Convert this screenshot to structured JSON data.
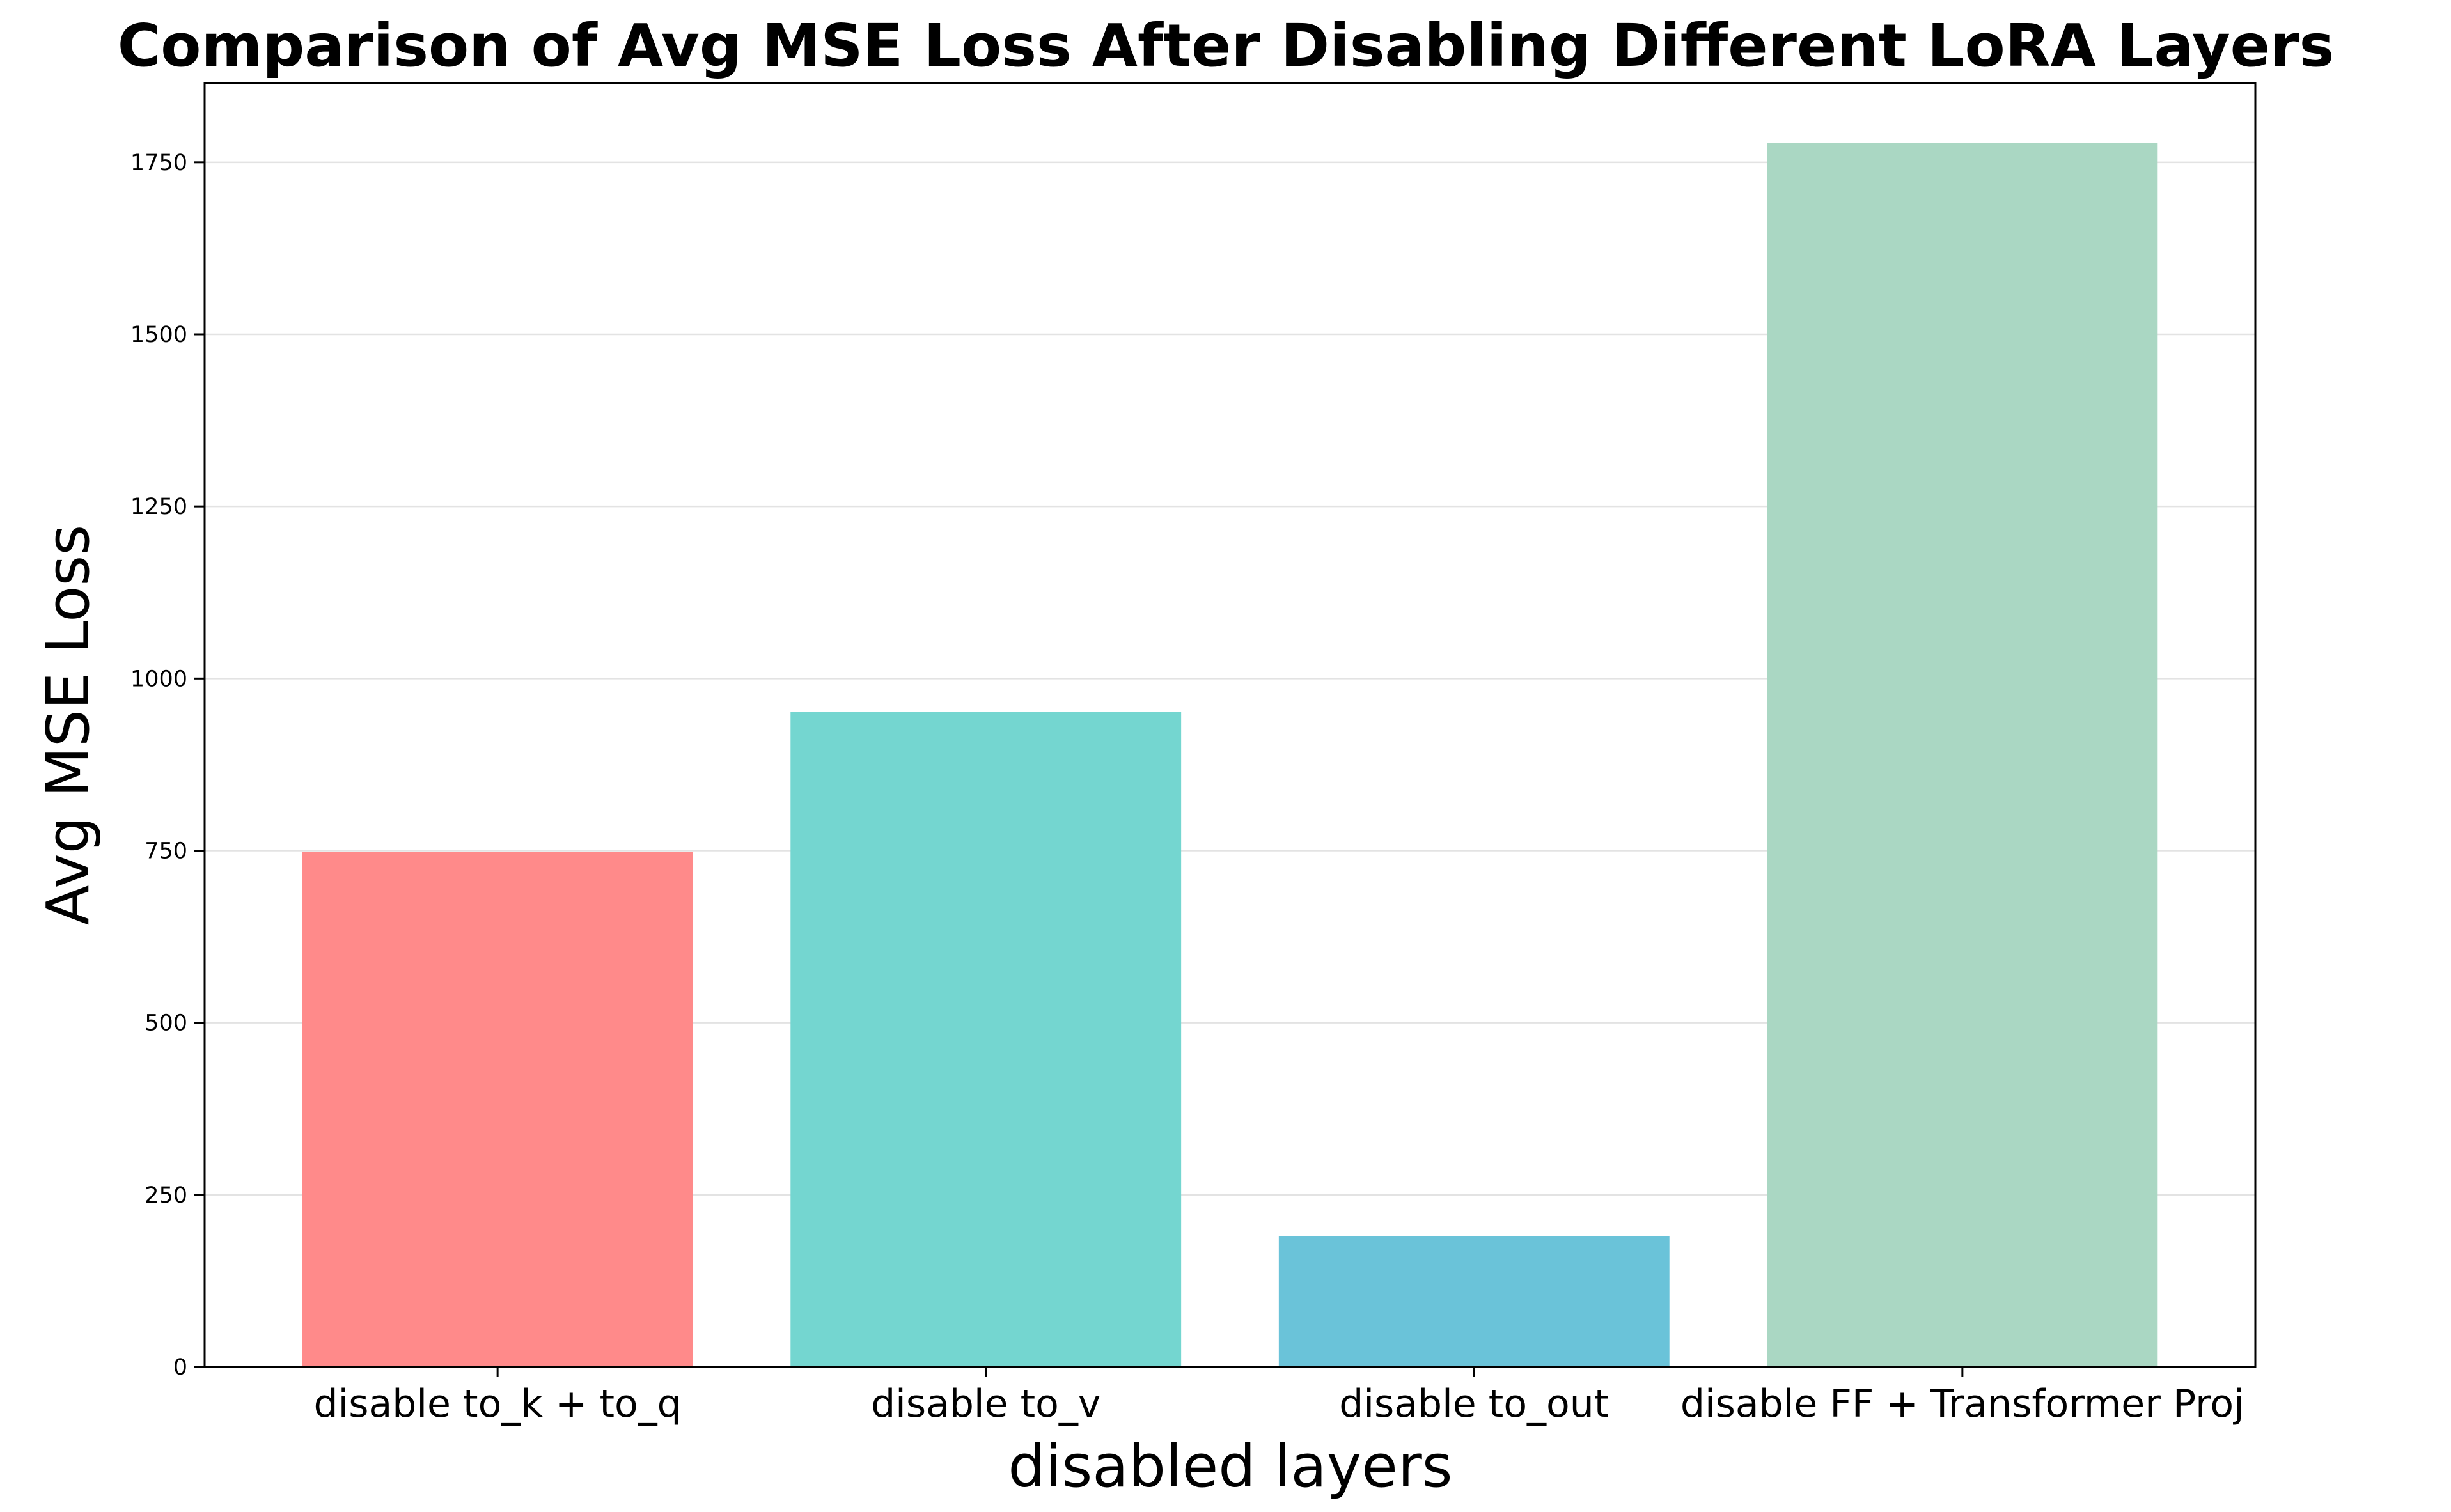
{
  "chart_data": {
    "type": "bar",
    "title": "Comparison of Avg MSE Loss After Disabling Different LoRA Layers",
    "xlabel": "disabled layers",
    "ylabel": "Avg MSE Loss",
    "categories": [
      "disable to_k + to_q",
      "disable to_v",
      "disable to_out",
      "disable FF + Transformer Proj"
    ],
    "values": [
      748,
      952,
      190,
      1778
    ],
    "colors": [
      "#ff8a8a",
      "#74d6d0",
      "#6ac3d9",
      "#aad7c3"
    ],
    "yticks": [
      0,
      250,
      500,
      750,
      1000,
      1250,
      1500,
      1750
    ],
    "ytick_labels": [
      "0",
      "250",
      "500",
      "750",
      "1000",
      "1250",
      "1500",
      "1750"
    ],
    "ylim": [
      0,
      1865
    ],
    "grid": "y",
    "legend": "none"
  }
}
